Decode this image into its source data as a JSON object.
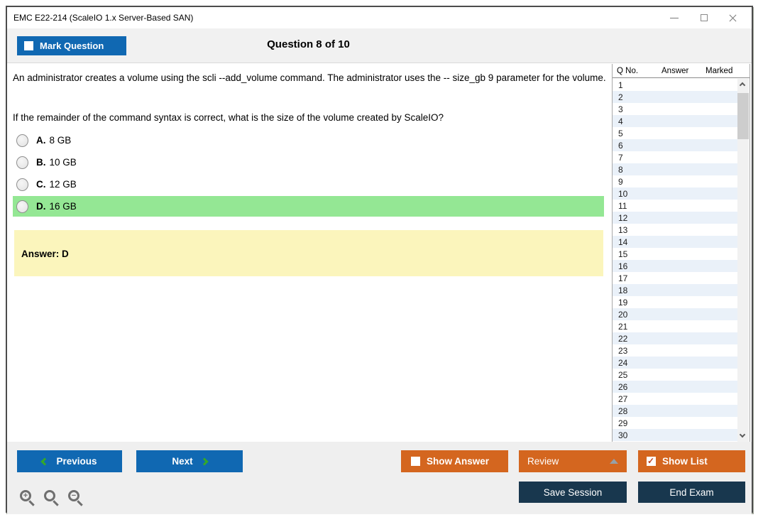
{
  "window": {
    "title": "EMC E22-214 (ScaleIO 1.x Server-Based SAN)"
  },
  "toolbar": {
    "mark_question_label": "Mark Question",
    "mark_question_checked": false,
    "question_counter": "Question 8 of 10"
  },
  "question": {
    "text_line1": "An administrator creates a volume using the scli --add_volume command. The administrator uses the -- size_gb 9 parameter for the volume.",
    "text_line2": "If the remainder of the command syntax is correct, what is the size of the volume created by ScaleIO?",
    "options": [
      {
        "letter": "A.",
        "text": "8 GB",
        "highlighted": false
      },
      {
        "letter": "B.",
        "text": "10 GB",
        "highlighted": false
      },
      {
        "letter": "C.",
        "text": "12 GB",
        "highlighted": false
      },
      {
        "letter": "D.",
        "text": "16 GB",
        "highlighted": true
      }
    ],
    "answer_text": "Answer: D"
  },
  "question_list": {
    "columns": [
      "Q No.",
      "Answer",
      "Marked"
    ],
    "rows": [
      "1",
      "2",
      "3",
      "4",
      "5",
      "6",
      "7",
      "8",
      "9",
      "10",
      "11",
      "12",
      "13",
      "14",
      "15",
      "16",
      "17",
      "18",
      "19",
      "20",
      "21",
      "22",
      "23",
      "24",
      "25",
      "26",
      "27",
      "28",
      "29",
      "30"
    ]
  },
  "footer": {
    "previous_label": "Previous",
    "next_label": "Next",
    "show_answer_label": "Show Answer",
    "show_answer_checked": false,
    "review_label": "Review",
    "show_list_label": "Show List",
    "show_list_checked": true,
    "save_session_label": "Save Session",
    "end_exam_label": "End Exam",
    "zoom_icons": [
      "zoom-in-icon",
      "zoom-reset-icon",
      "zoom-out-icon"
    ]
  },
  "colors": {
    "primary_blue": "#1068b2",
    "accent_orange": "#d4661f",
    "dark_navy": "#18374e",
    "highlight_green": "#94e794",
    "answer_yellow": "#fbf5bc",
    "row_alt_blue": "#eaf1f9",
    "chevron_green": "#35a829"
  }
}
